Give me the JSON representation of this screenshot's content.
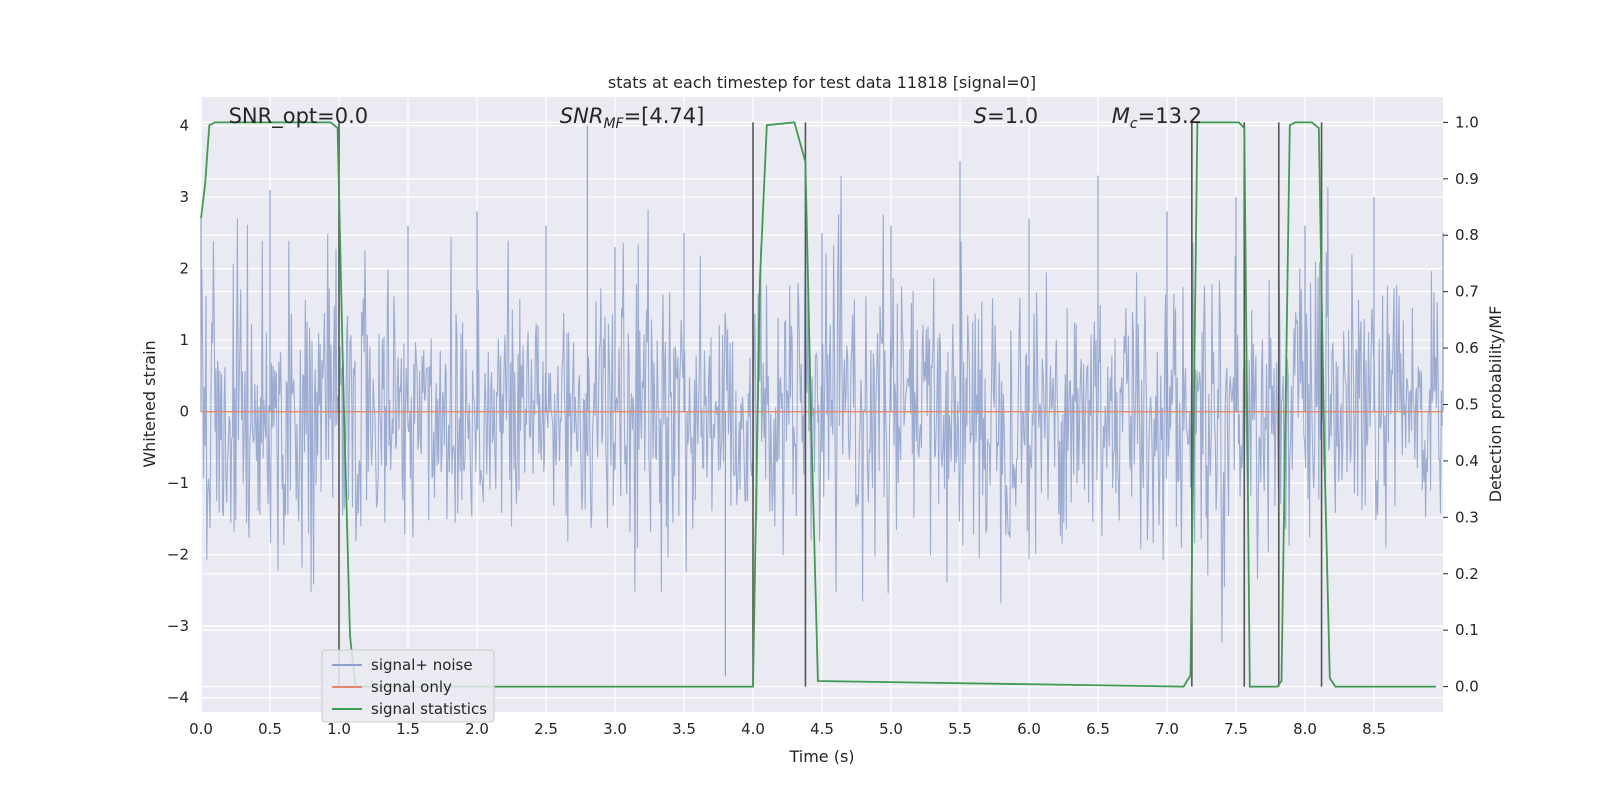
{
  "chart_data": {
    "type": "line",
    "title": "stats at each timestep for test data 11818 [signal=0]",
    "xlabel": "Time (s)",
    "ylabel_left": "Whitened strain",
    "ylabel_right": "Detection probability/MF",
    "xlim": [
      0.0,
      9.0
    ],
    "ylim_left": [
      -4.2,
      4.4
    ],
    "ylim_right": [
      -0.045,
      1.045
    ],
    "xticks": [
      "0.0",
      "0.5",
      "1.0",
      "1.5",
      "2.0",
      "2.5",
      "3.0",
      "3.5",
      "4.0",
      "4.5",
      "5.0",
      "5.5",
      "6.0",
      "6.5",
      "7.0",
      "7.5",
      "8.0",
      "8.5"
    ],
    "yticks_left": [
      "4",
      "3",
      "2",
      "1",
      "0",
      "−1",
      "−2",
      "−3",
      "−4"
    ],
    "yticks_right": [
      "1.0",
      "0.9",
      "0.8",
      "0.7",
      "0.6",
      "0.5",
      "0.4",
      "0.3",
      "0.2",
      "0.1",
      "0.0"
    ],
    "grid": true,
    "annotations": [
      {
        "text": "SNR_opt=0.0",
        "x": 0.2
      },
      {
        "text": "SNR_MF=[4.74]",
        "x": 2.6
      },
      {
        "text": "S=1.0",
        "x": 5.6
      },
      {
        "text": "M_c=13.2",
        "x": 6.6
      }
    ],
    "legend": {
      "placement": "lower-left",
      "entries": [
        {
          "label": "signal+ noise",
          "color": "#8da0cb"
        },
        {
          "label": "signal only",
          "color": "#e5896e"
        },
        {
          "label": "signal statistics",
          "color": "#3f9b4f"
        }
      ]
    },
    "series": [
      {
        "name": "signal+ noise",
        "axis": "left",
        "color": "#8da0cb",
        "description_points": "dense whitened noise spanning t=0..9 s, typical amplitude about -2.5..2.5, peaks near 4.0 at t=2.8 and near -3.7 at t=3.8",
        "x": [
          0.0,
          0.5,
          1.0,
          1.5,
          2.0,
          2.5,
          2.8,
          3.0,
          3.5,
          3.8,
          4.0,
          4.5,
          5.0,
          5.5,
          6.0,
          6.5,
          7.0,
          7.5,
          8.0,
          8.5,
          9.0
        ],
        "y": [
          2.7,
          3.1,
          3.2,
          2.6,
          2.8,
          2.6,
          4.0,
          2.3,
          2.5,
          -3.7,
          2.4,
          2.5,
          2.6,
          3.5,
          2.7,
          3.3,
          2.8,
          3.0,
          2.6,
          3.0,
          2.5
        ]
      },
      {
        "name": "signal only",
        "axis": "left",
        "color": "#e5896e",
        "x": [
          0.0,
          9.0
        ],
        "y": [
          0.0,
          0.0
        ]
      },
      {
        "name": "signal statistics",
        "axis": "right",
        "color": "#3f9b4f",
        "x": [
          0.0,
          0.03,
          0.06,
          0.1,
          0.94,
          0.99,
          1.03,
          1.08,
          1.12,
          4.0,
          4.05,
          4.1,
          4.3,
          4.38,
          4.42,
          4.47,
          7.12,
          7.17,
          7.22,
          7.52,
          7.56,
          7.6,
          7.8,
          7.83,
          7.89,
          7.93,
          8.05,
          8.1,
          8.14,
          8.18,
          8.22,
          8.95
        ],
        "y": [
          0.83,
          0.89,
          0.995,
          1.0,
          1.0,
          0.99,
          0.55,
          0.09,
          0.0,
          0.0,
          0.72,
          0.995,
          1.0,
          0.93,
          0.48,
          0.01,
          0.0,
          0.02,
          1.0,
          1.0,
          0.99,
          0.0,
          0.0,
          0.01,
          0.995,
          1.0,
          1.0,
          0.99,
          0.42,
          0.015,
          0.0,
          0.0
        ]
      }
    ],
    "vlines": [
      1.0,
      4.0,
      4.38,
      7.18,
      7.56,
      7.81,
      8.12
    ]
  }
}
